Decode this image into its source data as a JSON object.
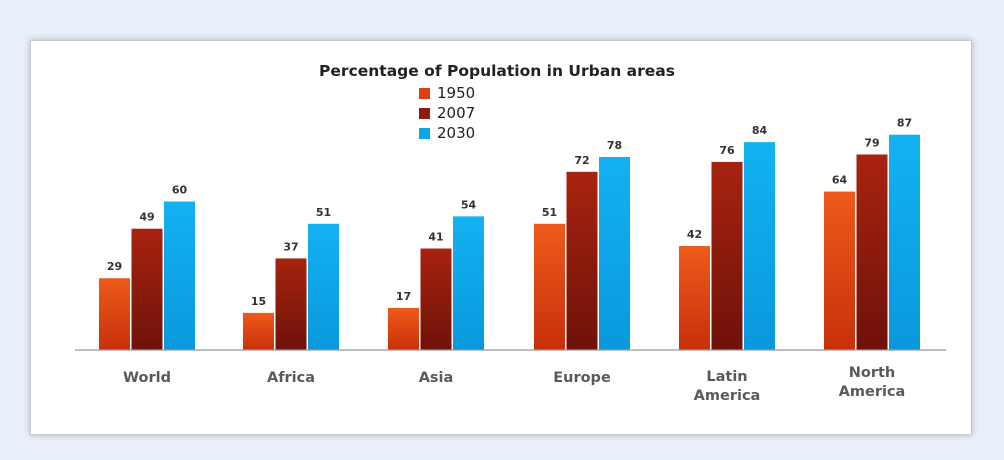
{
  "chart_data": {
    "type": "bar",
    "title": "Percentage of Population in Urban areas",
    "categories": [
      "World",
      "Africa",
      "Asia",
      "Europe",
      "Latin America",
      "North America"
    ],
    "category_lines": [
      [
        "World"
      ],
      [
        "Africa"
      ],
      [
        "Asia"
      ],
      [
        "Europe"
      ],
      [
        "Latin",
        "America"
      ],
      [
        "North",
        "America"
      ]
    ],
    "series": [
      {
        "name": "1950",
        "color": "#e0400f",
        "values": [
          29,
          15,
          17,
          51,
          42,
          64
        ]
      },
      {
        "name": "2007",
        "color": "#8f1a0e",
        "values": [
          49,
          37,
          41,
          72,
          76,
          79
        ]
      },
      {
        "name": "2030",
        "color": "#0aa6e8",
        "values": [
          60,
          51,
          54,
          78,
          84,
          87
        ]
      }
    ],
    "ylim": [
      0,
      100
    ],
    "grid": false,
    "legend": "top-center"
  }
}
